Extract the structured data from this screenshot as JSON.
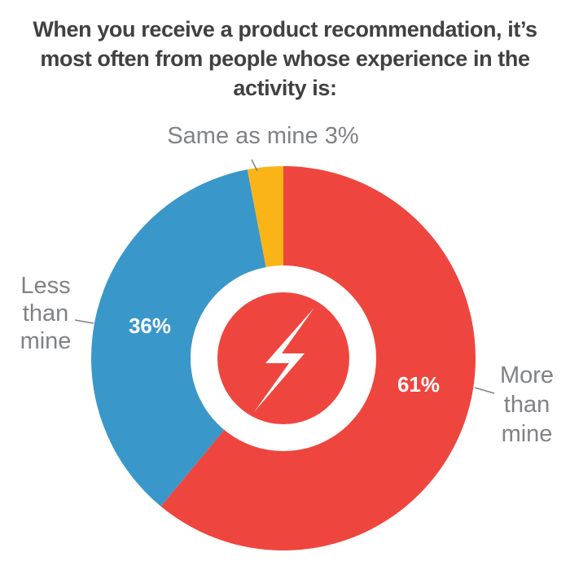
{
  "chart_data": {
    "type": "pie",
    "title": "When you receive a product recommendation, it’s\nmost often from people whose experience in the\nactivity is:",
    "slices": [
      {
        "name": "More than mine",
        "label_lines": [
          "More",
          "than",
          "mine"
        ],
        "value": 61,
        "value_label": "61%",
        "color": "#ee463e"
      },
      {
        "name": "Less than mine",
        "label_lines": [
          "Less",
          "than",
          "mine"
        ],
        "value": 36,
        "value_label": "36%",
        "color": "#3a97c9"
      },
      {
        "name": "Same as mine",
        "label_lines": [
          "Same as mine 3%"
        ],
        "value": 3,
        "value_label": "3%",
        "color": "#fbb418"
      }
    ],
    "center_icon": "lightning-bolt-icon",
    "center_icon_color": "#ee463e",
    "ring_color": "#ffffff",
    "legend": "none"
  }
}
